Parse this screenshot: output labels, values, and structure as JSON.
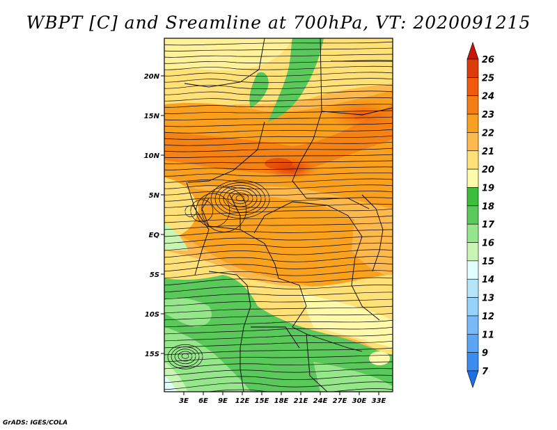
{
  "title": "WBPT [C] and Sreamline at 700hPa, VT: 2020091215",
  "footer": "GrADS: IGES/COLA",
  "map": {
    "lat_labels": [
      "20N",
      "15N",
      "10N",
      "5N",
      "EQ",
      "5S",
      "10S",
      "15S"
    ],
    "lon_labels": [
      "3E",
      "6E",
      "9E",
      "12E",
      "15E",
      "18E",
      "21E",
      "24E",
      "27E",
      "30E",
      "33E"
    ]
  },
  "colorbar": {
    "levels": [
      "7",
      "9",
      "11",
      "12",
      "13",
      "14",
      "15",
      "16",
      "17",
      "18",
      "19",
      "20",
      "21",
      "22",
      "23",
      "24",
      "25",
      "26"
    ],
    "colors": [
      "#1e6ee6",
      "#3c8cf0",
      "#5aa5f5",
      "#78b9fa",
      "#96d2fa",
      "#b4e6fa",
      "#e1ffff",
      "#c8f5b4",
      "#96e68c",
      "#5ac85a",
      "#3cbe3c",
      "#fffaaa",
      "#ffe178",
      "#fdb94e",
      "#f9a01e",
      "#f57d14",
      "#f05a0a",
      "#dc3c0a",
      "#c8140a"
    ]
  }
}
